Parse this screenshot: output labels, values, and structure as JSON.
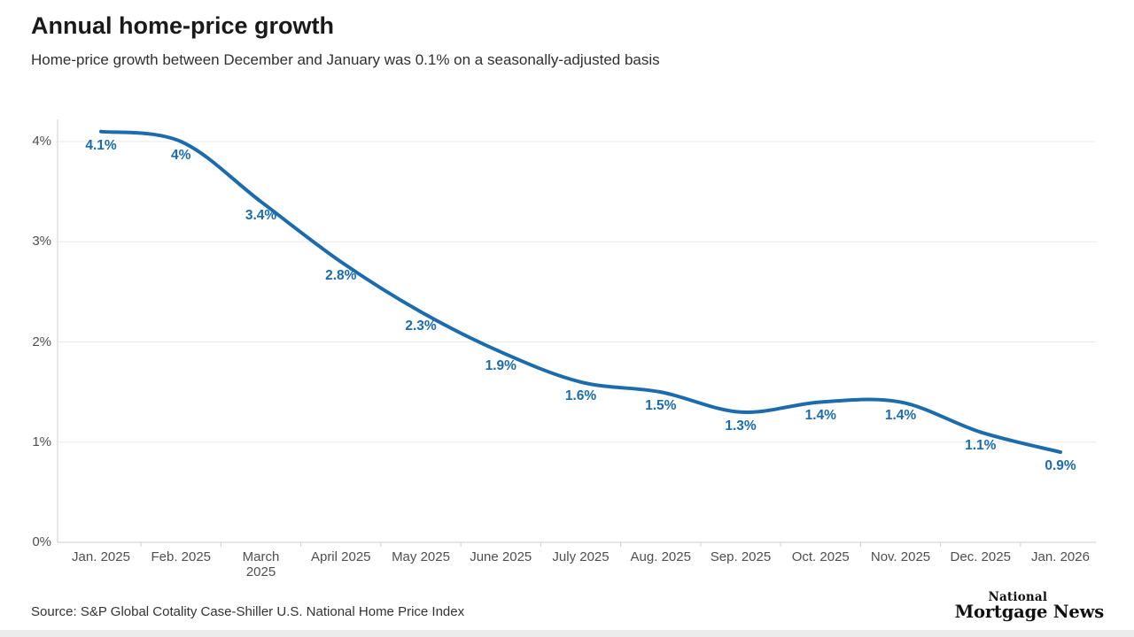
{
  "header": {
    "title": "Annual home-price growth",
    "subtitle": "Home-price growth between December and January was 0.1% on a seasonally-adjusted basis"
  },
  "chart_data": {
    "type": "line",
    "title": "Annual home-price growth",
    "subtitle": "Home-price growth between December and January was 0.1% on a seasonally-adjusted basis",
    "categories": [
      "Jan. 2025",
      "Feb. 2025",
      "March\n2025",
      "April 2025",
      "May 2025",
      "June 2025",
      "July 2025",
      "Aug. 2025",
      "Sep. 2025",
      "Oct. 2025",
      "Nov. 2025",
      "Dec. 2025",
      "Jan. 2026"
    ],
    "values": [
      4.1,
      4.0,
      3.4,
      2.8,
      2.3,
      1.9,
      1.6,
      1.5,
      1.3,
      1.4,
      1.4,
      1.1,
      0.9
    ],
    "point_labels": [
      "4.1%",
      "4%",
      "3.4%",
      "2.8%",
      "2.3%",
      "1.9%",
      "1.6%",
      "1.5%",
      "1.3%",
      "1.4%",
      "1.4%",
      "1.1%",
      "0.9%"
    ],
    "y_tick_labels": [
      "0%",
      "1%",
      "2%",
      "3%",
      "4%"
    ],
    "y_tick_values": [
      0,
      1,
      2,
      3,
      4
    ],
    "ylim": [
      0,
      4
    ],
    "xlabel": "",
    "ylabel": "",
    "grid": "horizontal",
    "legend": "none",
    "line_color": "#1b6cad",
    "label_color": "#1b6cad",
    "grid_color": "#e9e9e9",
    "axis_color": "#cfcfcf",
    "axis_text_color": "#4f4f4f"
  },
  "footer": {
    "source": "Source: S&P Global Cotality Case-Shiller U.S. National Home Price Index",
    "logo_line1": "National",
    "logo_line2": "Mortgage News"
  }
}
